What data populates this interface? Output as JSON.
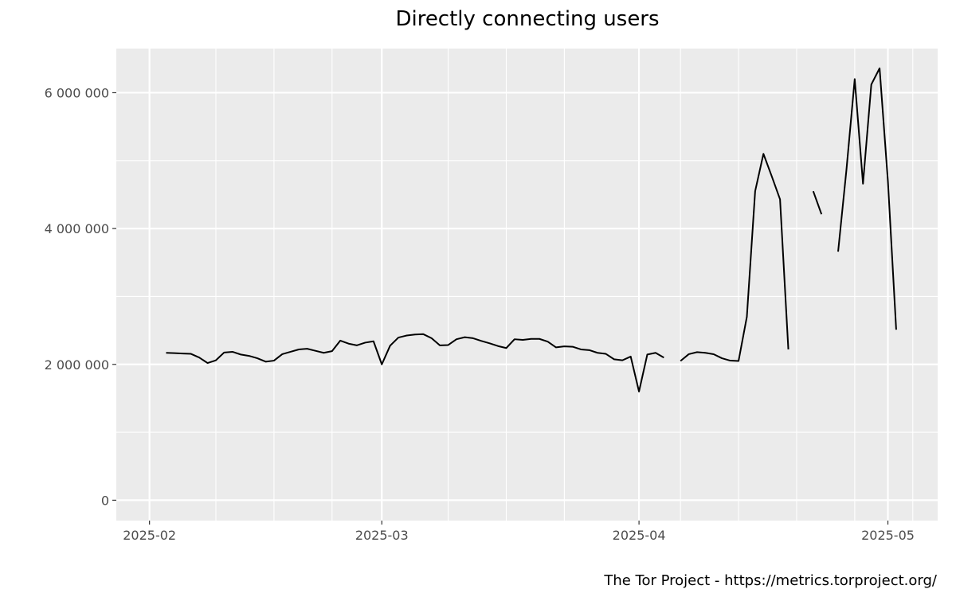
{
  "chart_data": {
    "type": "line",
    "title": "Directly connecting users",
    "caption": "The Tor Project - https://metrics.torproject.org/",
    "xlabel": "",
    "ylabel": "",
    "ylim": [
      -300000,
      6650000
    ],
    "xlim": [
      "2025-01-28",
      "2025-05-07"
    ],
    "yticks": [
      {
        "value": 0,
        "label": "0"
      },
      {
        "value": 2000000,
        "label": "2 000 000"
      },
      {
        "value": 4000000,
        "label": "4 000 000"
      },
      {
        "value": 6000000,
        "label": "6 000 000"
      }
    ],
    "yminor": [
      1000000,
      3000000,
      5000000
    ],
    "xticks": [
      {
        "value": "2025-02-01",
        "label": "2025-02"
      },
      {
        "value": "2025-03-01",
        "label": "2025-03"
      },
      {
        "value": "2025-04-01",
        "label": "2025-04"
      },
      {
        "value": "2025-05-01",
        "label": "2025-05"
      }
    ],
    "xminor": [
      "2025-02-09",
      "2025-02-16",
      "2025-02-23",
      "2025-03-09",
      "2025-03-16",
      "2025-03-23",
      "2025-04-06",
      "2025-04-13",
      "2025-04-20",
      "2025-04-27",
      "2025-05-04"
    ],
    "grid": true,
    "legend": "none",
    "colors": {
      "panel": "#ebebeb",
      "grid": "#ffffff",
      "line": "#000000",
      "text": "#4d4d4d"
    },
    "series": [
      {
        "segments": [
          [
            [
              "2025-02-03",
              2170000
            ],
            [
              "2025-02-04",
              2165000
            ],
            [
              "2025-02-05",
              2160000
            ],
            [
              "2025-02-06",
              2155000
            ],
            [
              "2025-02-07",
              2100000
            ],
            [
              "2025-02-08",
              2020000
            ],
            [
              "2025-02-09",
              2060000
            ],
            [
              "2025-02-10",
              2175000
            ],
            [
              "2025-02-11",
              2185000
            ],
            [
              "2025-02-12",
              2145000
            ],
            [
              "2025-02-13",
              2125000
            ],
            [
              "2025-02-14",
              2090000
            ],
            [
              "2025-02-15",
              2040000
            ],
            [
              "2025-02-16",
              2055000
            ],
            [
              "2025-02-17",
              2150000
            ],
            [
              "2025-02-18",
              2185000
            ],
            [
              "2025-02-19",
              2220000
            ],
            [
              "2025-02-20",
              2230000
            ],
            [
              "2025-02-21",
              2200000
            ],
            [
              "2025-02-22",
              2170000
            ],
            [
              "2025-02-23",
              2195000
            ],
            [
              "2025-02-24",
              2350000
            ],
            [
              "2025-02-25",
              2305000
            ],
            [
              "2025-02-26",
              2280000
            ],
            [
              "2025-02-27",
              2320000
            ],
            [
              "2025-02-28",
              2340000
            ],
            [
              "2025-03-01",
              2000000
            ],
            [
              "2025-03-02",
              2275000
            ],
            [
              "2025-03-03",
              2395000
            ],
            [
              "2025-03-04",
              2425000
            ],
            [
              "2025-03-05",
              2440000
            ],
            [
              "2025-03-06",
              2445000
            ],
            [
              "2025-03-07",
              2385000
            ],
            [
              "2025-03-08",
              2280000
            ],
            [
              "2025-03-09",
              2285000
            ],
            [
              "2025-03-10",
              2370000
            ],
            [
              "2025-03-11",
              2400000
            ],
            [
              "2025-03-12",
              2385000
            ],
            [
              "2025-03-13",
              2345000
            ],
            [
              "2025-03-14",
              2310000
            ],
            [
              "2025-03-15",
              2270000
            ],
            [
              "2025-03-16",
              2240000
            ],
            [
              "2025-03-17",
              2370000
            ],
            [
              "2025-03-18",
              2360000
            ],
            [
              "2025-03-19",
              2375000
            ],
            [
              "2025-03-20",
              2375000
            ],
            [
              "2025-03-21",
              2335000
            ],
            [
              "2025-03-22",
              2250000
            ],
            [
              "2025-03-23",
              2265000
            ],
            [
              "2025-03-24",
              2260000
            ],
            [
              "2025-03-25",
              2220000
            ],
            [
              "2025-03-26",
              2210000
            ],
            [
              "2025-03-27",
              2170000
            ],
            [
              "2025-03-28",
              2155000
            ],
            [
              "2025-03-29",
              2075000
            ],
            [
              "2025-03-30",
              2060000
            ],
            [
              "2025-03-31",
              2115000
            ],
            [
              "2025-04-01",
              1600000
            ],
            [
              "2025-04-02",
              2145000
            ],
            [
              "2025-04-03",
              2170000
            ],
            [
              "2025-04-04",
              2100000
            ]
          ],
          [
            [
              "2025-04-06",
              2050000
            ],
            [
              "2025-04-07",
              2150000
            ],
            [
              "2025-04-08",
              2180000
            ],
            [
              "2025-04-09",
              2170000
            ],
            [
              "2025-04-10",
              2150000
            ],
            [
              "2025-04-11",
              2090000
            ],
            [
              "2025-04-12",
              2055000
            ],
            [
              "2025-04-13",
              2050000
            ],
            [
              "2025-04-14",
              2700000
            ],
            [
              "2025-04-15",
              4550000
            ],
            [
              "2025-04-16",
              5100000
            ],
            [
              "2025-04-17",
              4770000
            ],
            [
              "2025-04-18",
              4430000
            ],
            [
              "2025-04-19",
              2220000
            ]
          ],
          [
            [
              "2025-04-22",
              4550000
            ],
            [
              "2025-04-23",
              4210000
            ]
          ],
          [
            [
              "2025-04-25",
              3660000
            ],
            [
              "2025-04-26",
              4860000
            ],
            [
              "2025-04-27",
              6200000
            ],
            [
              "2025-04-28",
              4660000
            ],
            [
              "2025-04-29",
              6120000
            ],
            [
              "2025-04-30",
              6360000
            ],
            [
              "2025-05-01",
              4700000
            ],
            [
              "2025-05-02",
              2510000
            ]
          ]
        ]
      }
    ]
  }
}
